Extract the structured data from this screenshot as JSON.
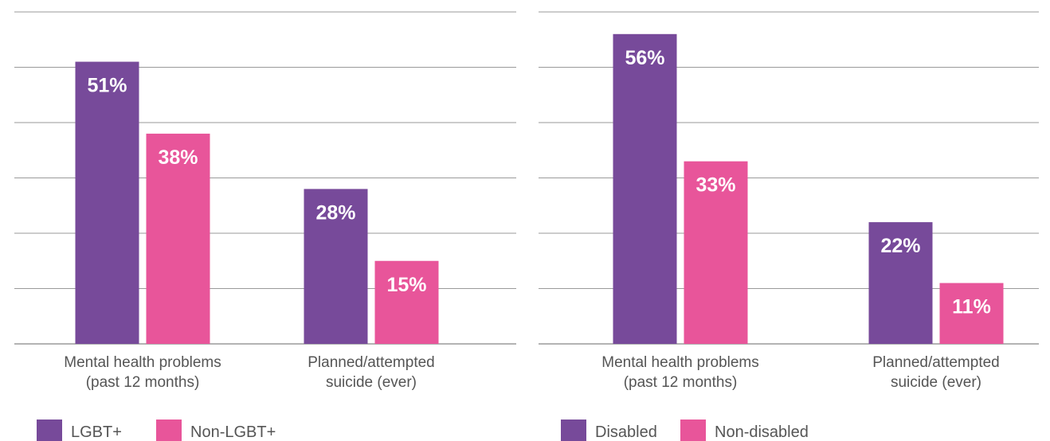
{
  "chart_data": [
    {
      "type": "bar",
      "categories": [
        [
          "Mental health problems",
          "(past 12 months)"
        ],
        [
          "Planned/attempted",
          "suicide (ever)"
        ]
      ],
      "series": [
        {
          "name": "LGBT+",
          "values": [
            51,
            28
          ],
          "value_labels": [
            "51%",
            "28%"
          ],
          "color": "#774a9a"
        },
        {
          "name": "Non-LGBT+",
          "values": [
            38,
            15
          ],
          "value_labels": [
            "38%",
            "15%"
          ],
          "color": "#e8559a"
        }
      ],
      "ylim": [
        0,
        60
      ],
      "grid": true,
      "legend": "bottom-left",
      "title": "",
      "xlabel": "",
      "ylabel": ""
    },
    {
      "type": "bar",
      "categories": [
        [
          "Mental health problems",
          "(past 12 months)"
        ],
        [
          "Planned/attempted",
          "suicide (ever)"
        ]
      ],
      "series": [
        {
          "name": "Disabled",
          "values": [
            56,
            22
          ],
          "value_labels": [
            "56%",
            "22%"
          ],
          "color": "#774a9a"
        },
        {
          "name": "Non-disabled",
          "values": [
            33,
            11
          ],
          "value_labels": [
            "33%",
            "11%"
          ],
          "color": "#e8559a"
        }
      ],
      "ylim": [
        0,
        60
      ],
      "grid": true,
      "legend": "bottom-left",
      "title": "",
      "xlabel": "",
      "ylabel": ""
    }
  ],
  "colors": {
    "grid": "#9a9a9a",
    "axis_text": "#555555",
    "value_text": "#ffffff"
  }
}
